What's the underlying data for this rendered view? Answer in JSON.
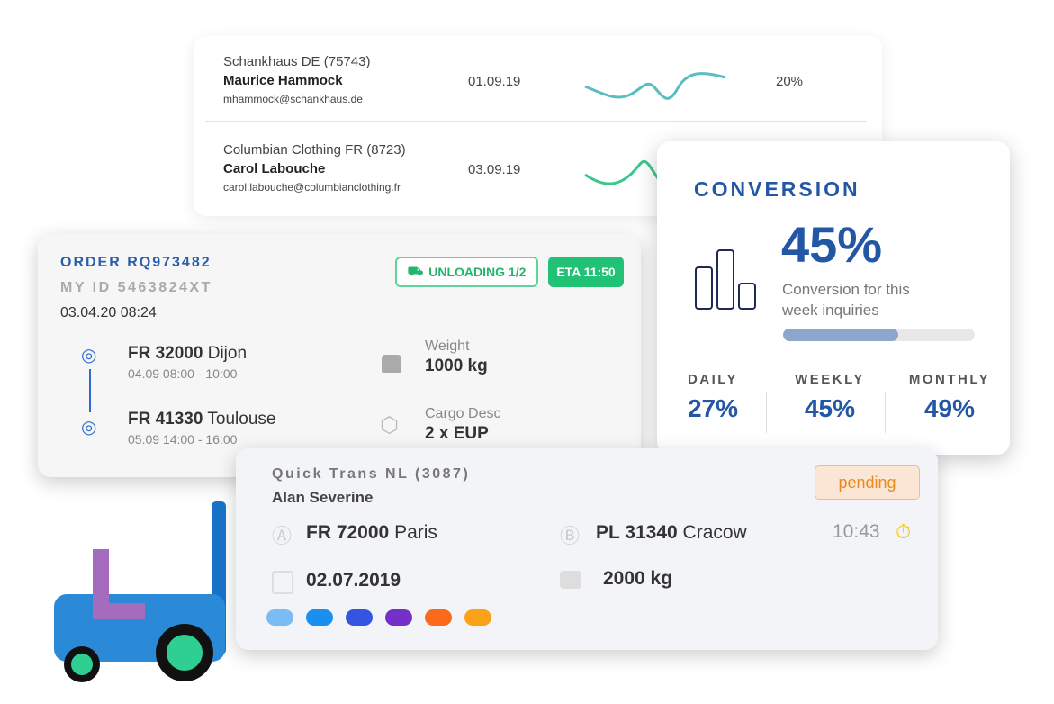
{
  "customers": [
    {
      "company": "Schankhaus DE (75743)",
      "name": "Maurice Hammock",
      "email": "mhammock@schankhaus.de",
      "date": "01.09.19",
      "percent": "20%",
      "color": "#5bbdc0"
    },
    {
      "company": "Columbian Clothing FR (8723)",
      "name": "Carol Labouche",
      "email": "carol.labouche@columbianclothing.fr",
      "date": "03.09.19",
      "color": "#3cc78a"
    }
  ],
  "conversion": {
    "title": "CONVERSION",
    "value": "45%",
    "description": "Conversion for this week inquiries",
    "progress": 0.6,
    "stats": [
      {
        "label": "DAILY",
        "value": "27%"
      },
      {
        "label": "WEEKLY",
        "value": "45%"
      },
      {
        "label": "MONTHLY",
        "value": "49%"
      }
    ]
  },
  "order": {
    "id": "ORDER RQ973482",
    "my_id": "MY ID 5463824XT",
    "timestamp": "03.04.20 08:24",
    "status_badge": "UNLOADING 1/2",
    "eta_badge": "ETA 11:50",
    "from": {
      "code": "FR 32000",
      "city": "Dijon",
      "time": "04.09 08:00 - 10:00"
    },
    "to": {
      "code": "FR 41330",
      "city": "Toulouse",
      "time": "05.09 14:00 - 16:00"
    },
    "weight_label": "Weight",
    "weight": "1000 kg",
    "cargo_label": "Cargo Desc",
    "cargo": "2 x EUP"
  },
  "quick": {
    "company": "Quick Trans NL (3087)",
    "name": "Alan Severine",
    "status": "pending",
    "from": {
      "code": "FR 72000",
      "city": "Paris"
    },
    "to": {
      "code": "PL 31340",
      "city": "Cracow"
    },
    "time": "10:43",
    "date": "02.07.2019",
    "weight": "2000 kg",
    "colors": [
      "#7bbcf5",
      "#1a8ff2",
      "#3355e0",
      "#7430c8",
      "#fb6a1a",
      "#fca11a"
    ]
  }
}
